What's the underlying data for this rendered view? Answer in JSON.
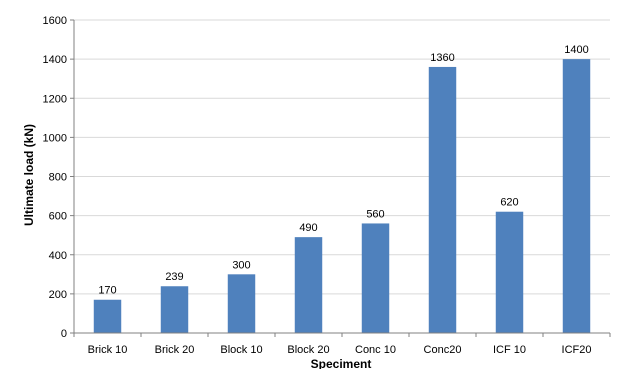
{
  "chart_data": {
    "type": "bar",
    "categories": [
      "Brick 10",
      "Brick 20",
      "Block 10",
      "Block 20",
      "Conc 10",
      "Conc20",
      "ICF 10",
      "ICF20"
    ],
    "values": [
      170,
      239,
      300,
      490,
      560,
      1360,
      620,
      1400
    ],
    "data_labels": [
      "170",
      "239",
      "300",
      "490",
      "560",
      "1360",
      "620",
      "1400"
    ],
    "xlabel": "Speciment",
    "ylabel": "Ultimate load  (kN)",
    "ylim": [
      0,
      1600
    ],
    "yticks": [
      "0",
      "200",
      "400",
      "600",
      "800",
      "1000",
      "1200",
      "1400",
      "1600"
    ],
    "grid": true,
    "bar_color": "#4f81bd",
    "grid_color": "#d9d9d9",
    "axis_color": "#808080"
  }
}
